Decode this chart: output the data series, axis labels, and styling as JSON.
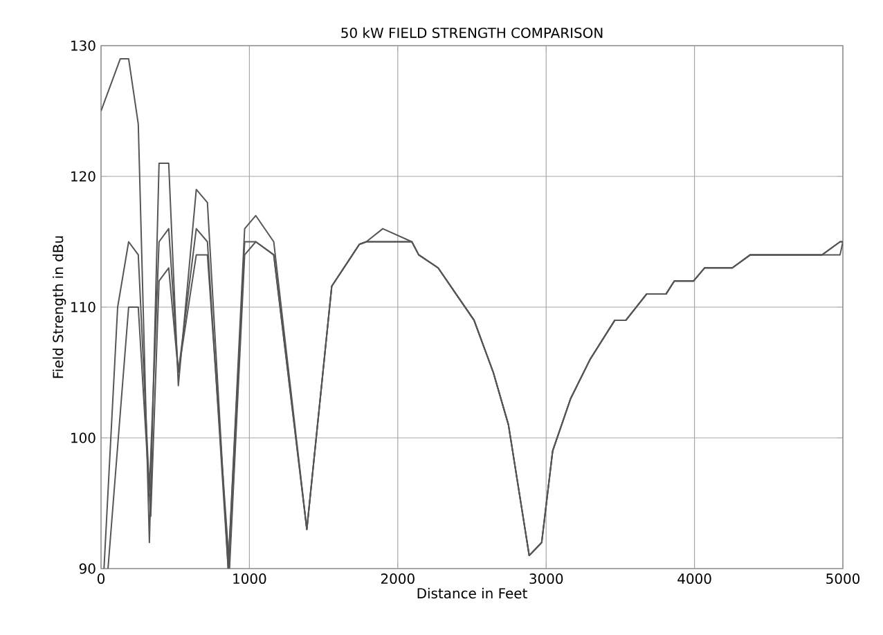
{
  "chart_data": {
    "type": "line",
    "title": "50 kW FIELD STRENGTH COMPARISON",
    "xlabel": "Distance in Feet",
    "ylabel": "Field Strength in dBu",
    "xlim": [
      0,
      5000
    ],
    "ylim": [
      90,
      130
    ],
    "xticks": [
      0,
      1000,
      2000,
      3000,
      4000,
      5000
    ],
    "yticks": [
      90,
      100,
      110,
      120,
      130
    ],
    "grid": true,
    "line_style": "solid",
    "series": [
      {
        "color": "#555555",
        "x": [
          0,
          130,
          186,
          251,
          326,
          391,
          456,
          521,
          642,
          717,
          857,
          968,
          1043,
          1164,
          1387,
          1555,
          1741,
          1788,
          1899,
          2095,
          2141,
          2272,
          2393,
          2514,
          2644,
          2746,
          2886,
          2970,
          3044,
          3165,
          3296,
          3463,
          3538,
          3677,
          3808,
          3864,
          3994,
          4068,
          4255,
          4376,
          4860,
          4981,
          5000
        ],
        "values": [
          125,
          129,
          129,
          124,
          92,
          121,
          121,
          104,
          119,
          118,
          90,
          116,
          117,
          115,
          93,
          111.6,
          114.8,
          115,
          116,
          115,
          114,
          113,
          111,
          109,
          105,
          101,
          91,
          92,
          99,
          103,
          106,
          109,
          109,
          111,
          111,
          112,
          112,
          113,
          113,
          114,
          114,
          115,
          115
        ]
      },
      {
        "color": "#555555",
        "x": [
          20,
          112,
          186,
          251,
          326,
          391,
          456,
          521,
          642,
          717,
          857,
          968,
          1043,
          1164,
          1387,
          1555,
          1741,
          1788,
          1899,
          2095,
          2141,
          2272,
          2393,
          2514,
          2644,
          2746,
          2886,
          2970,
          3044,
          3165,
          3296,
          3463,
          3538,
          3677,
          3808,
          3864,
          3994,
          4068,
          4255,
          4376,
          4860,
          4981,
          5000
        ],
        "values": [
          90,
          110,
          115,
          114,
          96,
          115,
          116,
          105,
          116,
          115,
          90,
          115,
          115,
          114,
          93,
          111.6,
          114.8,
          115,
          115,
          115,
          114,
          113,
          111,
          109,
          105,
          101,
          91,
          92,
          99,
          103,
          106,
          109,
          109,
          111,
          111,
          112,
          112,
          113,
          113,
          114,
          114,
          115,
          115
        ]
      },
      {
        "color": "#555555",
        "x": [
          47,
          186,
          251,
          335,
          391,
          456,
          521,
          642,
          717,
          866,
          968,
          1043,
          1164,
          1387,
          1555,
          1741,
          1788,
          1899,
          2095,
          2141,
          2272,
          2393,
          2514,
          2644,
          2746,
          2886,
          2970,
          3044,
          3165,
          3296,
          3463,
          3538,
          3677,
          3808,
          3864,
          3994,
          4068,
          4255,
          4376,
          4860,
          4981,
          5000
        ],
        "values": [
          90,
          110,
          110,
          94,
          112,
          113,
          105,
          114,
          114,
          90,
          114,
          115,
          114,
          93,
          111.6,
          114.8,
          115,
          115,
          115,
          114,
          113,
          111,
          109,
          105,
          101,
          91,
          92,
          99,
          103,
          106,
          109,
          109,
          111,
          111,
          112,
          112,
          113,
          113,
          114,
          114,
          114,
          115
        ]
      }
    ]
  }
}
